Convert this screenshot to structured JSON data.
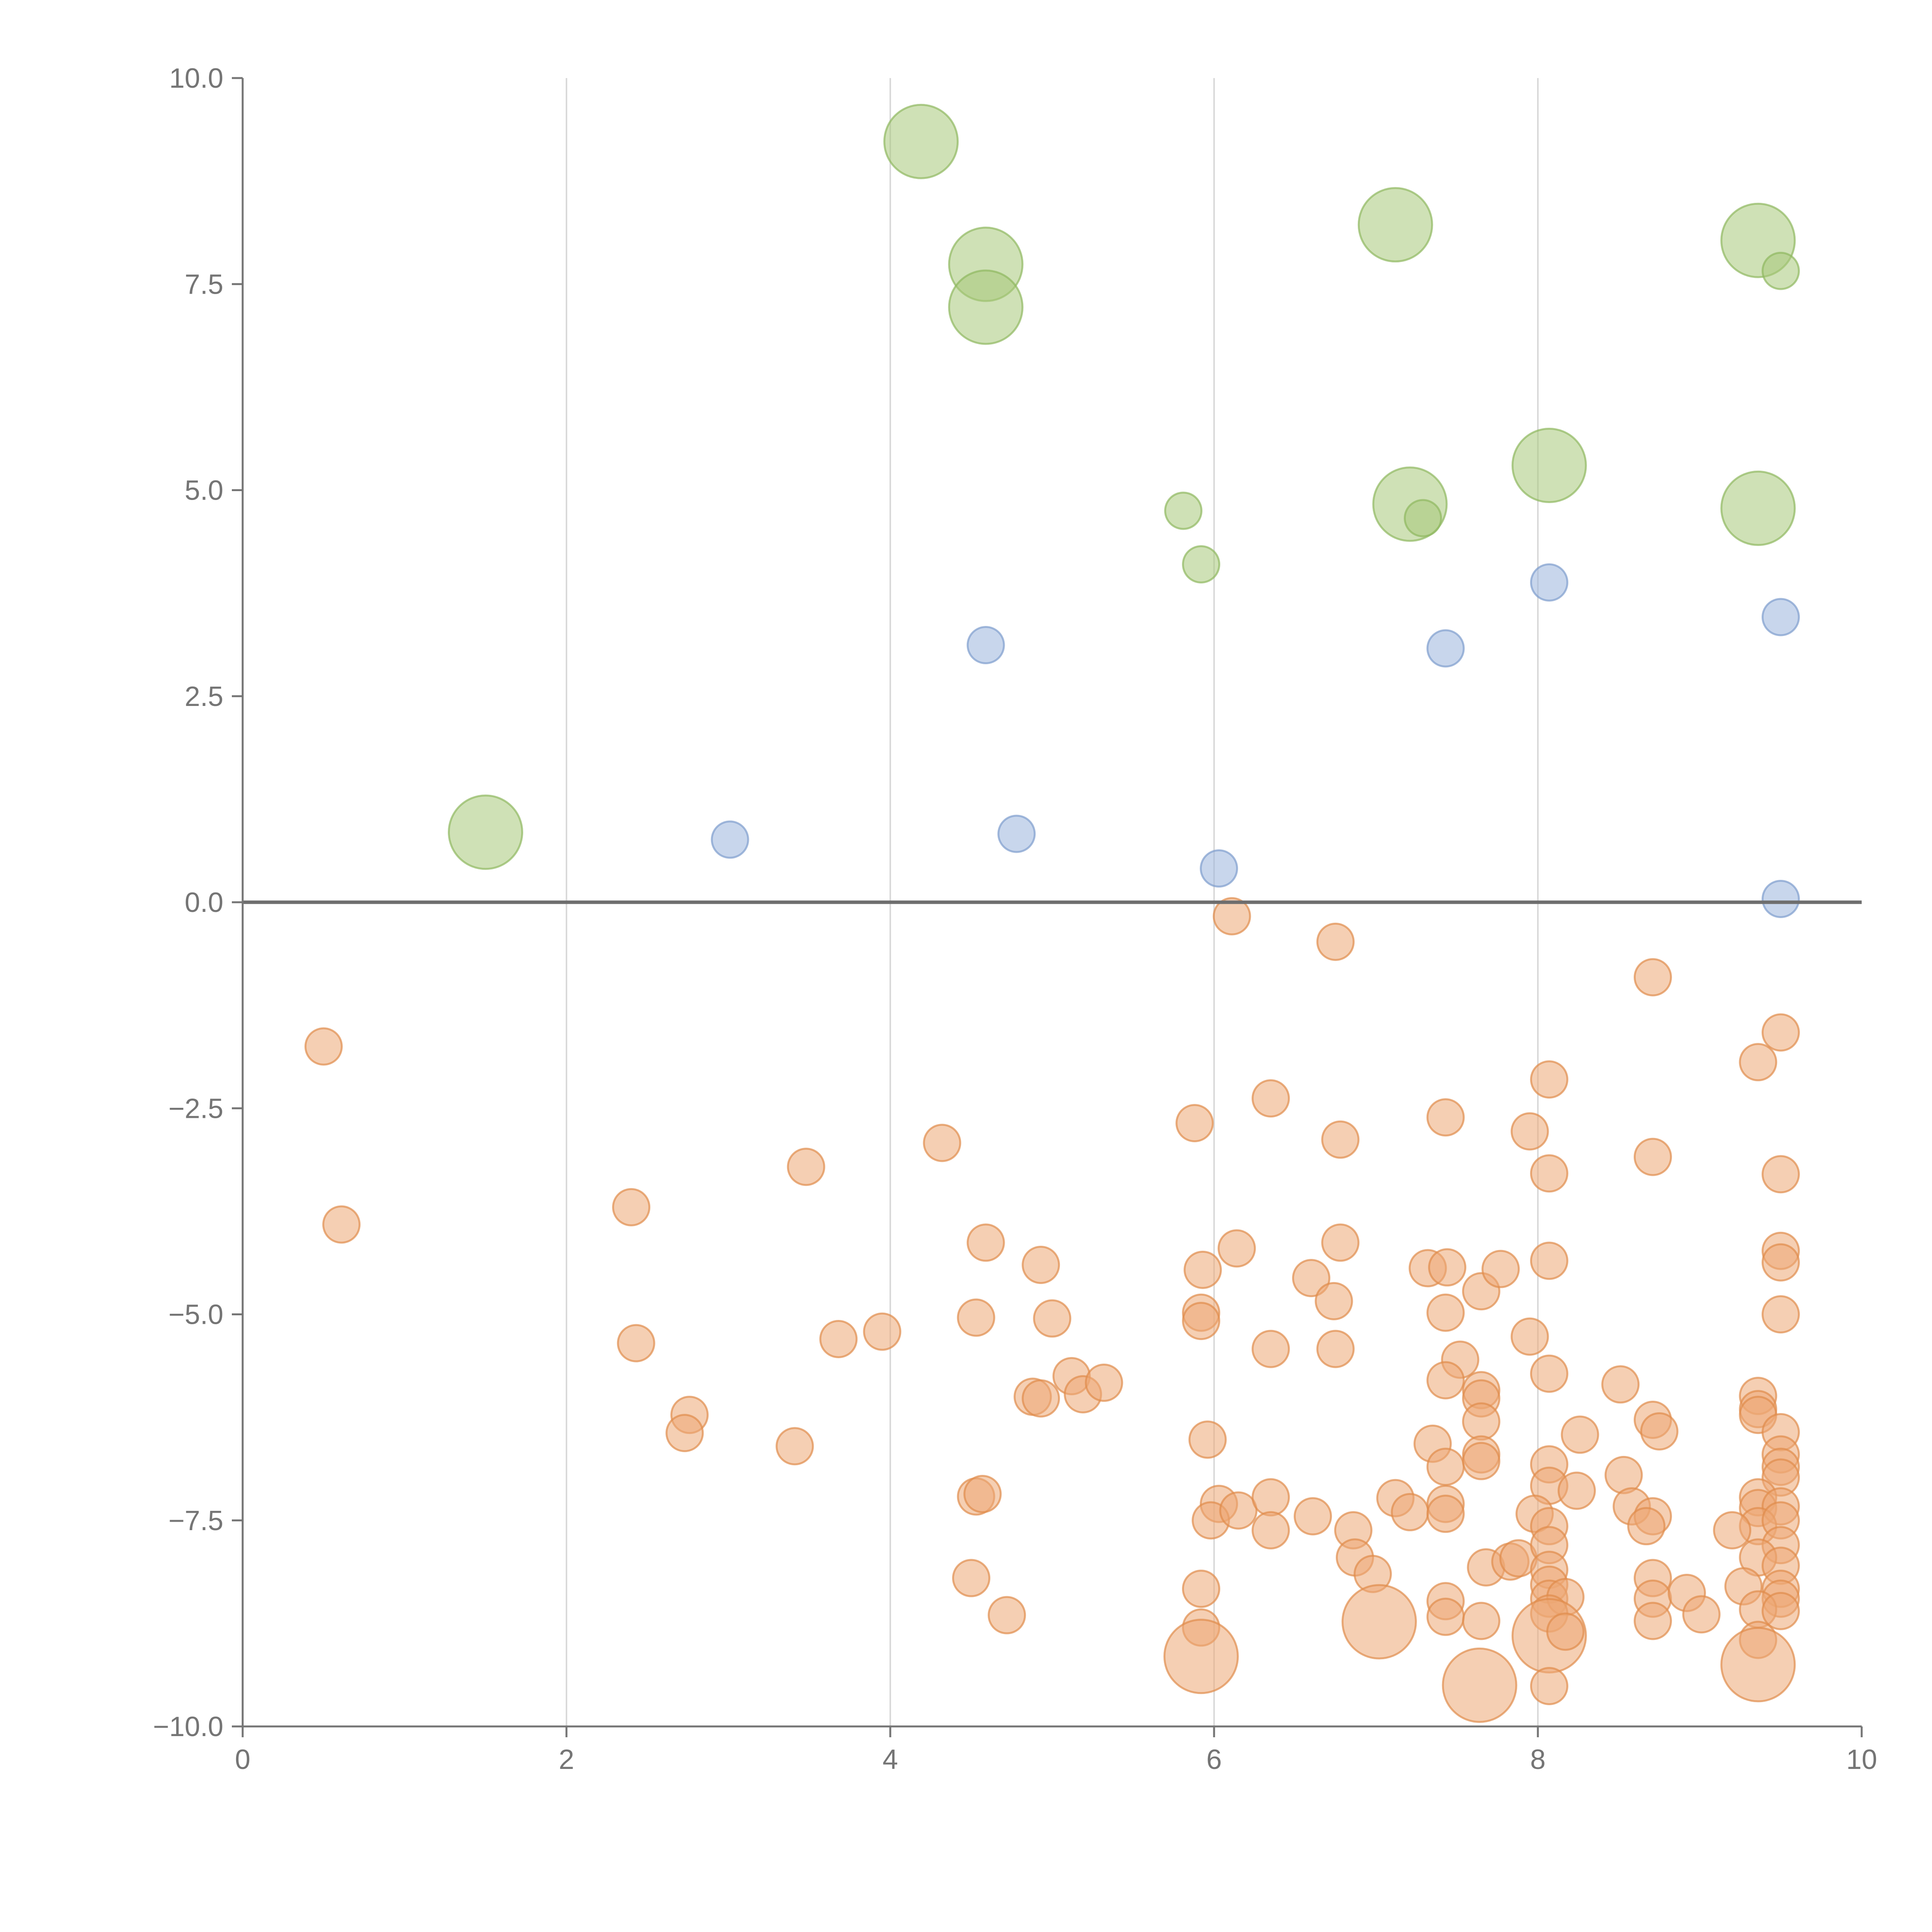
{
  "chart_data": {
    "type": "scatter",
    "title": "",
    "xlabel": "",
    "ylabel": "",
    "xlim": [
      0,
      10
    ],
    "ylim": [
      -10,
      10
    ],
    "x_ticks": [
      0,
      2,
      4,
      6,
      8,
      10
    ],
    "x_tick_labels": [
      "0",
      "2",
      "4",
      "6",
      "8",
      "10"
    ],
    "y_ticks": [
      10,
      7.5,
      5,
      2.5,
      0,
      -2.5,
      -5,
      -7.5,
      -10
    ],
    "y_tick_labels": [
      "10.0",
      "7.5",
      "5.0",
      "2.5",
      "0.0",
      "−2.5",
      "−5.0",
      "−7.5",
      "−10.0"
    ],
    "grid": "vertical",
    "reference_line_y": 0,
    "series": [
      {
        "name": "green",
        "color": "#a8c97a",
        "stroke": "#8fb85f",
        "points": [
          [
            4.19,
            9.23,
            2
          ],
          [
            4.59,
            7.74,
            2
          ],
          [
            4.59,
            7.22,
            2
          ],
          [
            7.12,
            8.22,
            2
          ],
          [
            9.36,
            8.03,
            2
          ],
          [
            9.5,
            7.66,
            1
          ],
          [
            8.07,
            5.3,
            2
          ],
          [
            7.21,
            4.83,
            2
          ],
          [
            7.29,
            4.66,
            1
          ],
          [
            9.36,
            4.78,
            2
          ],
          [
            5.81,
            4.75,
            1
          ],
          [
            5.92,
            4.1,
            1
          ],
          [
            1.5,
            0.85,
            2
          ]
        ]
      },
      {
        "name": "blue",
        "color": "#9bb5dc",
        "stroke": "#7d9ccd",
        "points": [
          [
            8.07,
            3.88,
            1
          ],
          [
            9.5,
            3.46,
            1
          ],
          [
            4.59,
            3.12,
            1
          ],
          [
            7.43,
            3.08,
            1
          ],
          [
            3.01,
            0.76,
            1
          ],
          [
            4.78,
            0.83,
            1
          ],
          [
            6.03,
            0.41,
            1
          ],
          [
            9.5,
            0.04,
            1
          ]
        ]
      },
      {
        "name": "orange",
        "color": "#eca874",
        "stroke": "#e08b4c",
        "points": [
          [
            0.5,
            -1.75,
            1
          ],
          [
            0.61,
            -3.91,
            1
          ],
          [
            2.4,
            -3.7,
            1
          ],
          [
            3.48,
            -3.21,
            1
          ],
          [
            4.32,
            -2.92,
            1
          ],
          [
            2.43,
            -5.35,
            1
          ],
          [
            3.68,
            -5.3,
            1
          ],
          [
            3.95,
            -5.21,
            1
          ],
          [
            2.76,
            -6.22,
            1
          ],
          [
            2.73,
            -6.44,
            1
          ],
          [
            3.41,
            -6.6,
            1
          ],
          [
            4.59,
            -4.13,
            1
          ],
          [
            4.53,
            -5.04,
            1
          ],
          [
            4.93,
            -4.4,
            1
          ],
          [
            5.0,
            -5.05,
            1
          ],
          [
            4.88,
            -6.0,
            1
          ],
          [
            4.93,
            -6.02,
            1
          ],
          [
            5.12,
            -5.75,
            1
          ],
          [
            5.19,
            -5.97,
            1
          ],
          [
            5.32,
            -5.83,
            1
          ],
          [
            4.53,
            -7.21,
            1
          ],
          [
            4.57,
            -7.18,
            1
          ],
          [
            4.5,
            -8.2,
            1
          ],
          [
            4.72,
            -8.65,
            1
          ],
          [
            5.88,
            -2.68,
            1
          ],
          [
            6.35,
            -2.38,
            1
          ],
          [
            5.93,
            -4.46,
            1
          ],
          [
            6.14,
            -4.2,
            1
          ],
          [
            5.92,
            -4.98,
            1
          ],
          [
            5.92,
            -5.08,
            1
          ],
          [
            6.35,
            -5.42,
            1
          ],
          [
            5.96,
            -6.52,
            1
          ],
          [
            6.03,
            -7.3,
            1
          ],
          [
            5.98,
            -7.5,
            1
          ],
          [
            6.15,
            -7.38,
            1
          ],
          [
            6.35,
            -7.22,
            1
          ],
          [
            6.35,
            -7.62,
            1
          ],
          [
            5.92,
            -8.33,
            1
          ],
          [
            5.92,
            -8.8,
            1
          ],
          [
            5.92,
            -9.15,
            2
          ],
          [
            6.11,
            -0.17,
            1
          ],
          [
            6.75,
            -0.48,
            1
          ],
          [
            6.78,
            -2.88,
            1
          ],
          [
            6.78,
            -4.13,
            1
          ],
          [
            6.6,
            -4.56,
            1
          ],
          [
            6.74,
            -4.84,
            1
          ],
          [
            6.75,
            -5.42,
            1
          ],
          [
            6.61,
            -7.45,
            1
          ],
          [
            6.86,
            -7.62,
            1
          ],
          [
            6.87,
            -7.95,
            1
          ],
          [
            6.98,
            -8.15,
            1
          ],
          [
            7.02,
            -8.73,
            2
          ],
          [
            7.12,
            -7.23,
            1
          ],
          [
            7.21,
            -7.4,
            1
          ],
          [
            7.43,
            -2.61,
            1
          ],
          [
            7.32,
            -4.44,
            1
          ],
          [
            7.44,
            -4.43,
            1
          ],
          [
            7.43,
            -4.98,
            1
          ],
          [
            7.65,
            -4.72,
            1
          ],
          [
            7.77,
            -4.45,
            1
          ],
          [
            7.52,
            -5.55,
            1
          ],
          [
            7.43,
            -5.8,
            1
          ],
          [
            7.65,
            -5.92,
            1
          ],
          [
            7.65,
            -6.02,
            1
          ],
          [
            7.65,
            -6.3,
            1
          ],
          [
            7.35,
            -6.57,
            1
          ],
          [
            7.43,
            -6.85,
            1
          ],
          [
            7.65,
            -6.7,
            1
          ],
          [
            7.65,
            -6.78,
            1
          ],
          [
            7.43,
            -7.3,
            1
          ],
          [
            7.43,
            -7.42,
            1
          ],
          [
            7.43,
            -8.48,
            1
          ],
          [
            7.43,
            -8.67,
            1
          ],
          [
            7.65,
            -8.72,
            1
          ],
          [
            7.68,
            -8.07,
            1
          ],
          [
            7.83,
            -8.0,
            1
          ],
          [
            7.88,
            -7.96,
            1
          ],
          [
            7.64,
            -9.5,
            2
          ],
          [
            8.07,
            -2.15,
            1
          ],
          [
            7.95,
            -2.78,
            1
          ],
          [
            8.07,
            -3.29,
            1
          ],
          [
            8.07,
            -4.35,
            1
          ],
          [
            7.95,
            -5.27,
            1
          ],
          [
            8.07,
            -5.72,
            1
          ],
          [
            8.07,
            -6.82,
            1
          ],
          [
            8.07,
            -7.08,
            1
          ],
          [
            8.24,
            -7.14,
            1
          ],
          [
            7.98,
            -7.42,
            1
          ],
          [
            8.07,
            -7.57,
            1
          ],
          [
            8.07,
            -7.8,
            1
          ],
          [
            8.07,
            -8.1,
            1
          ],
          [
            8.07,
            -8.28,
            1
          ],
          [
            8.07,
            -8.45,
            1
          ],
          [
            8.17,
            -8.43,
            1
          ],
          [
            8.07,
            -8.63,
            1
          ],
          [
            8.07,
            -8.9,
            2
          ],
          [
            8.17,
            -8.85,
            1
          ],
          [
            8.07,
            -9.51,
            1
          ],
          [
            8.26,
            -6.46,
            1
          ],
          [
            8.51,
            -5.85,
            1
          ],
          [
            8.53,
            -6.95,
            1
          ],
          [
            8.58,
            -7.33,
            1
          ],
          [
            8.71,
            -7.45,
            1
          ],
          [
            8.67,
            -7.57,
            1
          ],
          [
            8.71,
            -0.91,
            1
          ],
          [
            8.71,
            -3.09,
            1
          ],
          [
            8.71,
            -6.28,
            1
          ],
          [
            8.75,
            -6.42,
            1
          ],
          [
            8.71,
            -8.2,
            1
          ],
          [
            8.71,
            -8.45,
            1
          ],
          [
            8.71,
            -8.72,
            1
          ],
          [
            8.92,
            -8.38,
            1
          ],
          [
            9.01,
            -8.64,
            1
          ],
          [
            9.36,
            -1.94,
            1
          ],
          [
            9.5,
            -1.58,
            1
          ],
          [
            9.5,
            -3.3,
            1
          ],
          [
            9.5,
            -4.23,
            1
          ],
          [
            9.5,
            -4.37,
            1
          ],
          [
            9.5,
            -5.0,
            1
          ],
          [
            9.36,
            -5.99,
            1
          ],
          [
            9.36,
            -6.15,
            1
          ],
          [
            9.36,
            -6.22,
            1
          ],
          [
            9.5,
            -6.43,
            1
          ],
          [
            9.5,
            -6.7,
            1
          ],
          [
            9.5,
            -6.85,
            1
          ],
          [
            9.5,
            -6.98,
            1
          ],
          [
            9.36,
            -7.22,
            1
          ],
          [
            9.36,
            -7.35,
            1
          ],
          [
            9.5,
            -7.33,
            1
          ],
          [
            9.36,
            -7.57,
            1
          ],
          [
            9.5,
            -7.5,
            1
          ],
          [
            9.2,
            -7.62,
            1
          ],
          [
            9.5,
            -7.8,
            1
          ],
          [
            9.36,
            -7.95,
            1
          ],
          [
            9.5,
            -8.05,
            1
          ],
          [
            9.27,
            -8.3,
            1
          ],
          [
            9.5,
            -8.33,
            1
          ],
          [
            9.5,
            -8.45,
            1
          ],
          [
            9.36,
            -8.58,
            1
          ],
          [
            9.5,
            -8.6,
            1
          ],
          [
            9.36,
            -8.95,
            1
          ],
          [
            9.36,
            -9.25,
            2
          ]
        ]
      }
    ]
  }
}
